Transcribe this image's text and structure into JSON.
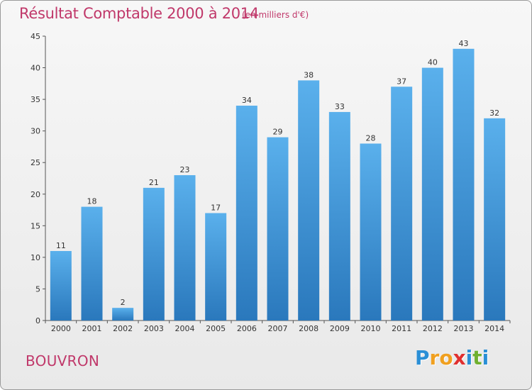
{
  "header": {
    "title": "Résultat Comptable 2000 à 2014",
    "subtitle": "(en milliers d'€)"
  },
  "footer": {
    "commune": "BOUVRON",
    "logo_letters": [
      "P",
      "r",
      "o",
      "x",
      "i",
      "t",
      "i"
    ],
    "logo_colors": [
      "#2a8fd6",
      "#f0a020",
      "#f0a020",
      "#e03030",
      "#2a8fd6",
      "#70b030",
      "#2a8fd6"
    ]
  },
  "chart_data": {
    "type": "bar",
    "title": "Résultat Comptable 2000 à 2014",
    "subtitle": "(en milliers d'€)",
    "categories": [
      "2000",
      "2001",
      "2002",
      "2003",
      "2004",
      "2005",
      "2006",
      "2007",
      "2008",
      "2009",
      "2010",
      "2011",
      "2012",
      "2013",
      "2014"
    ],
    "values": [
      11,
      18,
      2,
      21,
      23,
      17,
      34,
      29,
      38,
      33,
      28,
      37,
      40,
      43,
      32
    ],
    "ylim": [
      0,
      45
    ],
    "yticks": [
      0,
      5,
      10,
      15,
      20,
      25,
      30,
      35,
      40,
      45
    ],
    "grid": false,
    "bar_color_top": "#5ab0ec",
    "bar_color_bottom": "#2a78bc"
  }
}
